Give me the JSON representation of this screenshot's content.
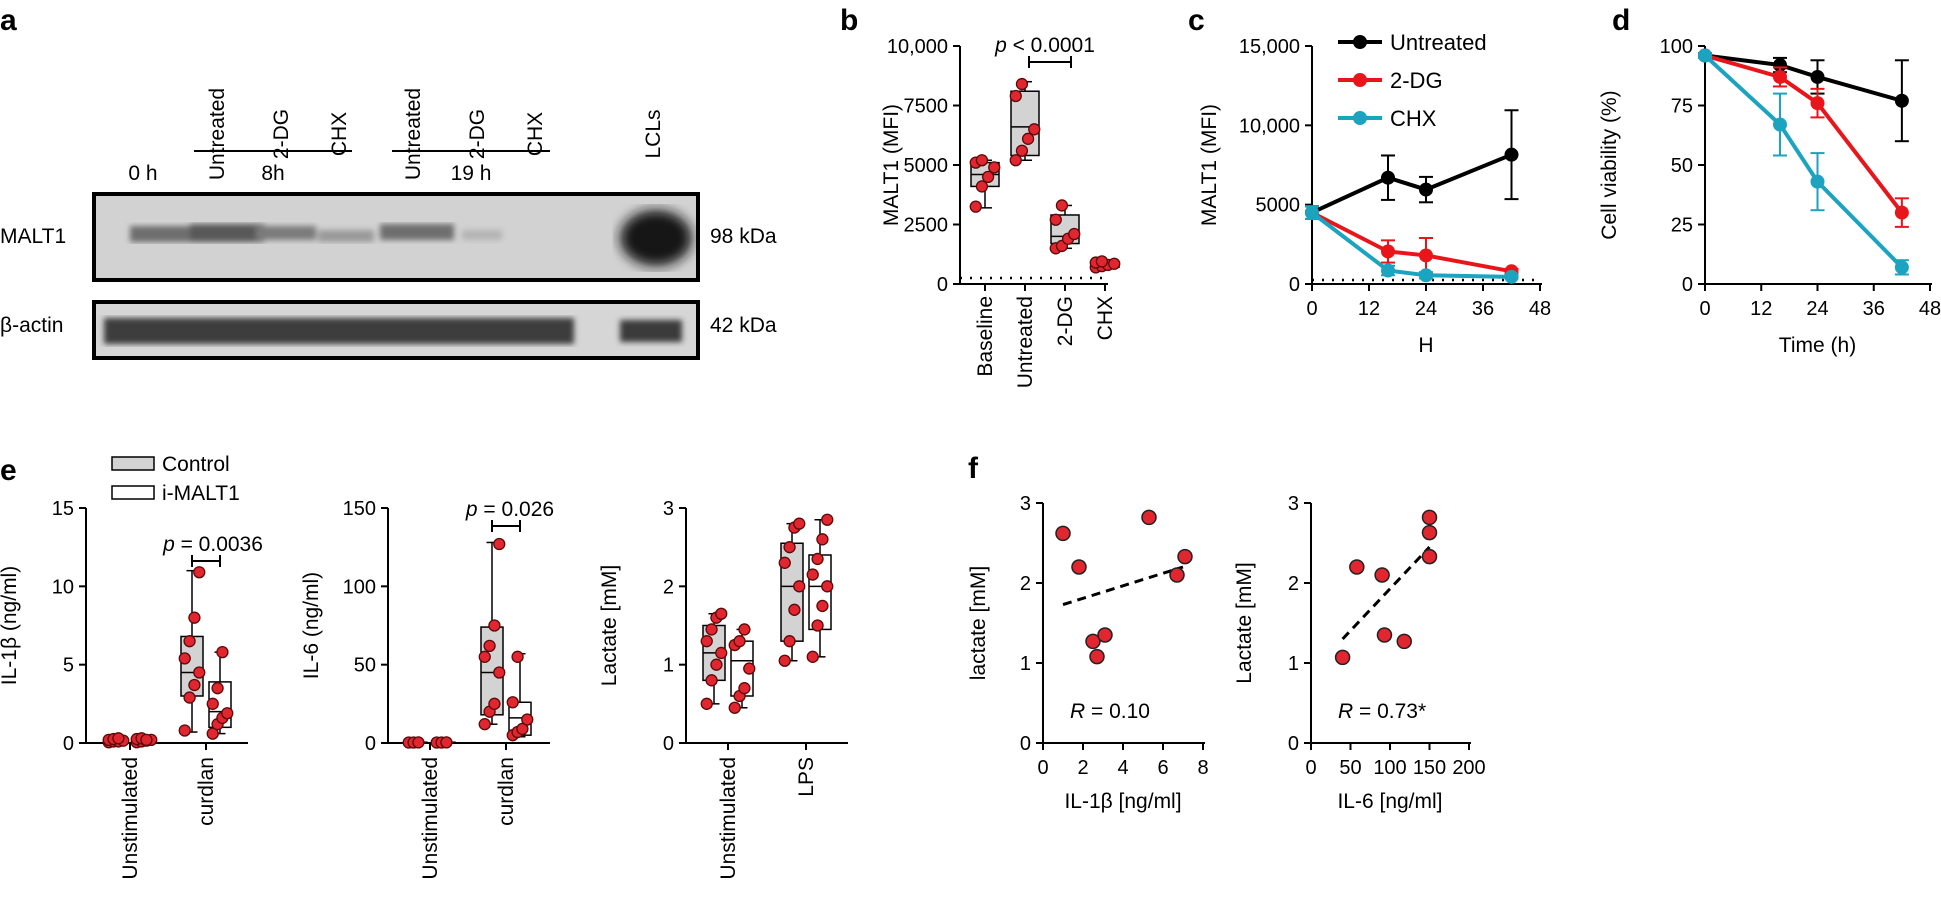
{
  "panel_letters": {
    "a": "a",
    "b": "b",
    "c": "c",
    "d": "d",
    "e": "e",
    "f": "f"
  },
  "colors": {
    "red": "#E8161B",
    "black": "#000000",
    "teal": "#1BA3C0",
    "box_fill": "#D3D3D3",
    "dot_fill": "#E22630",
    "dot_edge": "#5A0A0A"
  },
  "panel_a": {
    "protein_label": "MALT1",
    "actin_label": "β-actin",
    "size_malt1": "98 kDa",
    "size_actin": "42 kDa",
    "lane0": "0 h",
    "group1_label": "8h",
    "group2_label": "19 h",
    "group1_lanes": [
      "Untreated",
      "2-DG",
      "CHX"
    ],
    "group2_lanes": [
      "Untreated",
      "2-DG",
      "CHX"
    ],
    "lcl_label": "LCLs"
  },
  "chart_data": [
    {
      "id": "b",
      "type": "box",
      "ylabel": "MALT1 (MFI)",
      "ylim": [
        0,
        10000
      ],
      "yticks": [
        "0",
        "2500",
        "5000",
        "7500",
        "10,000"
      ],
      "categories": [
        "Baseline",
        "Untreated",
        "2-DG",
        "CHX"
      ],
      "boxes": [
        {
          "q1": 4100,
          "median": 4600,
          "q3": 5100,
          "min": 3200,
          "max": 5200,
          "points": [
            3250,
            4100,
            4500,
            4900,
            5100,
            5200
          ]
        },
        {
          "q1": 5400,
          "median": 6600,
          "q3": 8100,
          "min": 5200,
          "max": 8500,
          "points": [
            5200,
            5600,
            6100,
            6500,
            7900,
            8400
          ]
        },
        {
          "q1": 1700,
          "median": 2000,
          "q3": 2900,
          "min": 1500,
          "max": 3300,
          "points": [
            1500,
            1600,
            1900,
            2100,
            2700,
            3300
          ]
        },
        {
          "q1": 700,
          "median": 800,
          "q3": 900,
          "min": 650,
          "max": 950,
          "points": [
            700,
            750,
            800,
            850,
            900,
            950
          ]
        }
      ],
      "baseline_dotted": 250,
      "annotation": {
        "text": "p < 0.0001",
        "between": [
          1,
          2
        ]
      }
    },
    {
      "id": "c",
      "type": "line",
      "ylabel": "MALT1 (MFI)",
      "xlabel": "H",
      "ylim": [
        0,
        15000
      ],
      "xlim": [
        0,
        48
      ],
      "yticks": [
        "0",
        "5000",
        "10,000",
        "15,000"
      ],
      "xticks": [
        "0",
        "12",
        "24",
        "36",
        "48"
      ],
      "legend_position": "top-right",
      "series": [
        {
          "name": "Untreated",
          "color": "#000000",
          "x": [
            0,
            16,
            24,
            42
          ],
          "y": [
            4500,
            6700,
            5950,
            8150
          ],
          "err": [
            400,
            1400,
            800,
            2800
          ]
        },
        {
          "name": "2-DG",
          "color": "#E8161B",
          "x": [
            0,
            16,
            24,
            42
          ],
          "y": [
            4500,
            2050,
            1800,
            800
          ],
          "err": [
            400,
            700,
            1100,
            150
          ]
        },
        {
          "name": "CHX",
          "color": "#1BA3C0",
          "x": [
            0,
            16,
            24,
            42
          ],
          "y": [
            4500,
            850,
            550,
            450
          ],
          "err": [
            400,
            300,
            200,
            100
          ]
        }
      ],
      "baseline_dotted": 250
    },
    {
      "id": "d",
      "type": "line",
      "ylabel": "Cell viability (%)",
      "xlabel": "Time (h)",
      "ylim": [
        0,
        100
      ],
      "xlim": [
        0,
        48
      ],
      "yticks": [
        "0",
        "25",
        "50",
        "75",
        "100"
      ],
      "xticks": [
        "0",
        "12",
        "24",
        "36",
        "48"
      ],
      "series": [
        {
          "name": "Untreated",
          "color": "#000000",
          "x": [
            0,
            16,
            24,
            42
          ],
          "y": [
            96,
            92,
            87,
            77
          ],
          "err": [
            1,
            3,
            7,
            17
          ]
        },
        {
          "name": "2-DG",
          "color": "#E8161B",
          "x": [
            0,
            16,
            24,
            42
          ],
          "y": [
            96,
            87,
            76,
            30
          ],
          "err": [
            1,
            4,
            6,
            6
          ]
        },
        {
          "name": "CHX",
          "color": "#1BA3C0",
          "x": [
            0,
            16,
            24,
            42
          ],
          "y": [
            96,
            67,
            43,
            7
          ],
          "err": [
            1,
            13,
            12,
            3
          ]
        }
      ]
    },
    {
      "id": "e1",
      "type": "box",
      "ylabel": "IL-1β (ng/ml)",
      "ylim": [
        0,
        15
      ],
      "yticks": [
        "0",
        "5",
        "10",
        "15"
      ],
      "categories": [
        "Unstimulated",
        "curdlan"
      ],
      "legend": [
        "Control",
        "i-MALT1"
      ],
      "boxes": [
        {
          "group": 0,
          "filled": true,
          "q1": 0.05,
          "median": 0.1,
          "q3": 0.2,
          "min": 0.0,
          "max": 0.3,
          "points": [
            0.05,
            0.1,
            0.1,
            0.15,
            0.2,
            0.25,
            0.3
          ]
        },
        {
          "group": 0,
          "filled": false,
          "q1": 0.05,
          "median": 0.1,
          "q3": 0.2,
          "min": 0.0,
          "max": 0.3,
          "points": [
            0.05,
            0.1,
            0.15,
            0.2,
            0.25,
            0.3,
            0.2
          ]
        },
        {
          "group": 1,
          "filled": true,
          "q1": 3.0,
          "median": 4.5,
          "q3": 6.8,
          "min": 0.7,
          "max": 11.0,
          "points": [
            0.8,
            2.9,
            3.7,
            4.5,
            5.4,
            6.5,
            8.0,
            10.9
          ]
        },
        {
          "group": 1,
          "filled": false,
          "q1": 1.0,
          "median": 2.0,
          "q3": 3.9,
          "min": 0.6,
          "max": 5.8,
          "points": [
            0.6,
            1.2,
            1.6,
            1.9,
            2.5,
            3.5,
            5.8
          ]
        }
      ],
      "annotation": {
        "text": "p = 0.0036",
        "between": [
          2,
          3
        ]
      }
    },
    {
      "id": "e2",
      "type": "box",
      "ylabel": "IL-6 (ng/ml)",
      "ylim": [
        0,
        150
      ],
      "yticks": [
        "0",
        "50",
        "100",
        "150"
      ],
      "categories": [
        "Unstimulated",
        "curdlan"
      ],
      "boxes": [
        {
          "group": 0,
          "filled": true,
          "q1": 0.2,
          "median": 0.3,
          "q3": 0.5,
          "min": 0.1,
          "max": 0.6,
          "points": [
            0.3,
            0.3,
            0.4
          ]
        },
        {
          "group": 0,
          "filled": false,
          "q1": 0.2,
          "median": 0.3,
          "q3": 0.5,
          "min": 0.1,
          "max": 0.6,
          "points": [
            0.3,
            0.3,
            0.4
          ]
        },
        {
          "group": 1,
          "filled": true,
          "q1": 18,
          "median": 45,
          "q3": 74,
          "min": 12,
          "max": 128,
          "points": [
            12,
            20,
            25,
            45,
            55,
            62,
            75,
            127
          ]
        },
        {
          "group": 1,
          "filled": false,
          "q1": 5,
          "median": 16,
          "q3": 26,
          "min": 4,
          "max": 57,
          "points": [
            5,
            7,
            9,
            15,
            26,
            55
          ]
        }
      ],
      "annotation": {
        "text": "p = 0.026",
        "between": [
          2,
          3
        ]
      }
    },
    {
      "id": "e3",
      "type": "box",
      "ylabel": "Lactate [mM]",
      "ylim": [
        0,
        3
      ],
      "yticks": [
        "0",
        "1",
        "2",
        "3"
      ],
      "categories": [
        "Unstimulated",
        "LPS"
      ],
      "boxes": [
        {
          "group": 0,
          "filled": true,
          "q1": 0.8,
          "median": 1.15,
          "q3": 1.5,
          "min": 0.5,
          "max": 1.65,
          "points": [
            0.5,
            0.8,
            1.0,
            1.15,
            1.3,
            1.45,
            1.6,
            1.65
          ]
        },
        {
          "group": 0,
          "filled": false,
          "q1": 0.6,
          "median": 1.05,
          "q3": 1.3,
          "min": 0.45,
          "max": 1.45,
          "points": [
            0.45,
            0.6,
            0.7,
            0.95,
            1.25,
            1.3,
            1.45
          ]
        },
        {
          "group": 1,
          "filled": true,
          "q1": 1.3,
          "median": 2.0,
          "q3": 2.55,
          "min": 1.05,
          "max": 2.8,
          "points": [
            1.05,
            1.3,
            1.7,
            2.0,
            2.3,
            2.5,
            2.75,
            2.8
          ]
        },
        {
          "group": 1,
          "filled": false,
          "q1": 1.45,
          "median": 2.0,
          "q3": 2.4,
          "min": 1.1,
          "max": 2.85,
          "points": [
            1.1,
            1.5,
            1.75,
            2.0,
            2.15,
            2.35,
            2.6,
            2.85
          ]
        }
      ]
    },
    {
      "id": "f1",
      "type": "scatter",
      "ylabel": "lactate [mM]",
      "xlabel": "IL-1β [ng/ml]",
      "ylim": [
        0,
        3
      ],
      "xlim": [
        0,
        8
      ],
      "yticks": [
        "0",
        "1",
        "2",
        "3"
      ],
      "xticks": [
        "0",
        "2",
        "4",
        "6",
        "8"
      ],
      "points": [
        [
          1.0,
          2.62
        ],
        [
          1.8,
          2.2
        ],
        [
          2.5,
          1.27
        ],
        [
          2.7,
          1.08
        ],
        [
          3.1,
          1.35
        ],
        [
          5.3,
          2.82
        ],
        [
          6.7,
          2.1
        ],
        [
          7.1,
          2.33
        ]
      ],
      "fit": [
        [
          1.0,
          1.73
        ],
        [
          7.0,
          2.2
        ]
      ],
      "annotation": "R = 0.10"
    },
    {
      "id": "f2",
      "type": "scatter",
      "ylabel": "Lactate [mM]",
      "xlabel": "IL-6 [ng/ml]",
      "ylim": [
        0,
        3
      ],
      "xlim": [
        0,
        200
      ],
      "yticks": [
        "0",
        "1",
        "2",
        "3"
      ],
      "xticks": [
        "0",
        "50",
        "100",
        "150",
        "200"
      ],
      "points": [
        [
          40,
          1.07
        ],
        [
          58,
          2.2
        ],
        [
          90,
          2.1
        ],
        [
          93,
          1.35
        ],
        [
          118,
          1.27
        ],
        [
          150,
          2.33
        ],
        [
          150,
          2.63
        ],
        [
          150,
          2.82
        ]
      ],
      "fit": [
        [
          40,
          1.3
        ],
        [
          150,
          2.45
        ]
      ],
      "annotation": "R = 0.73*"
    }
  ]
}
